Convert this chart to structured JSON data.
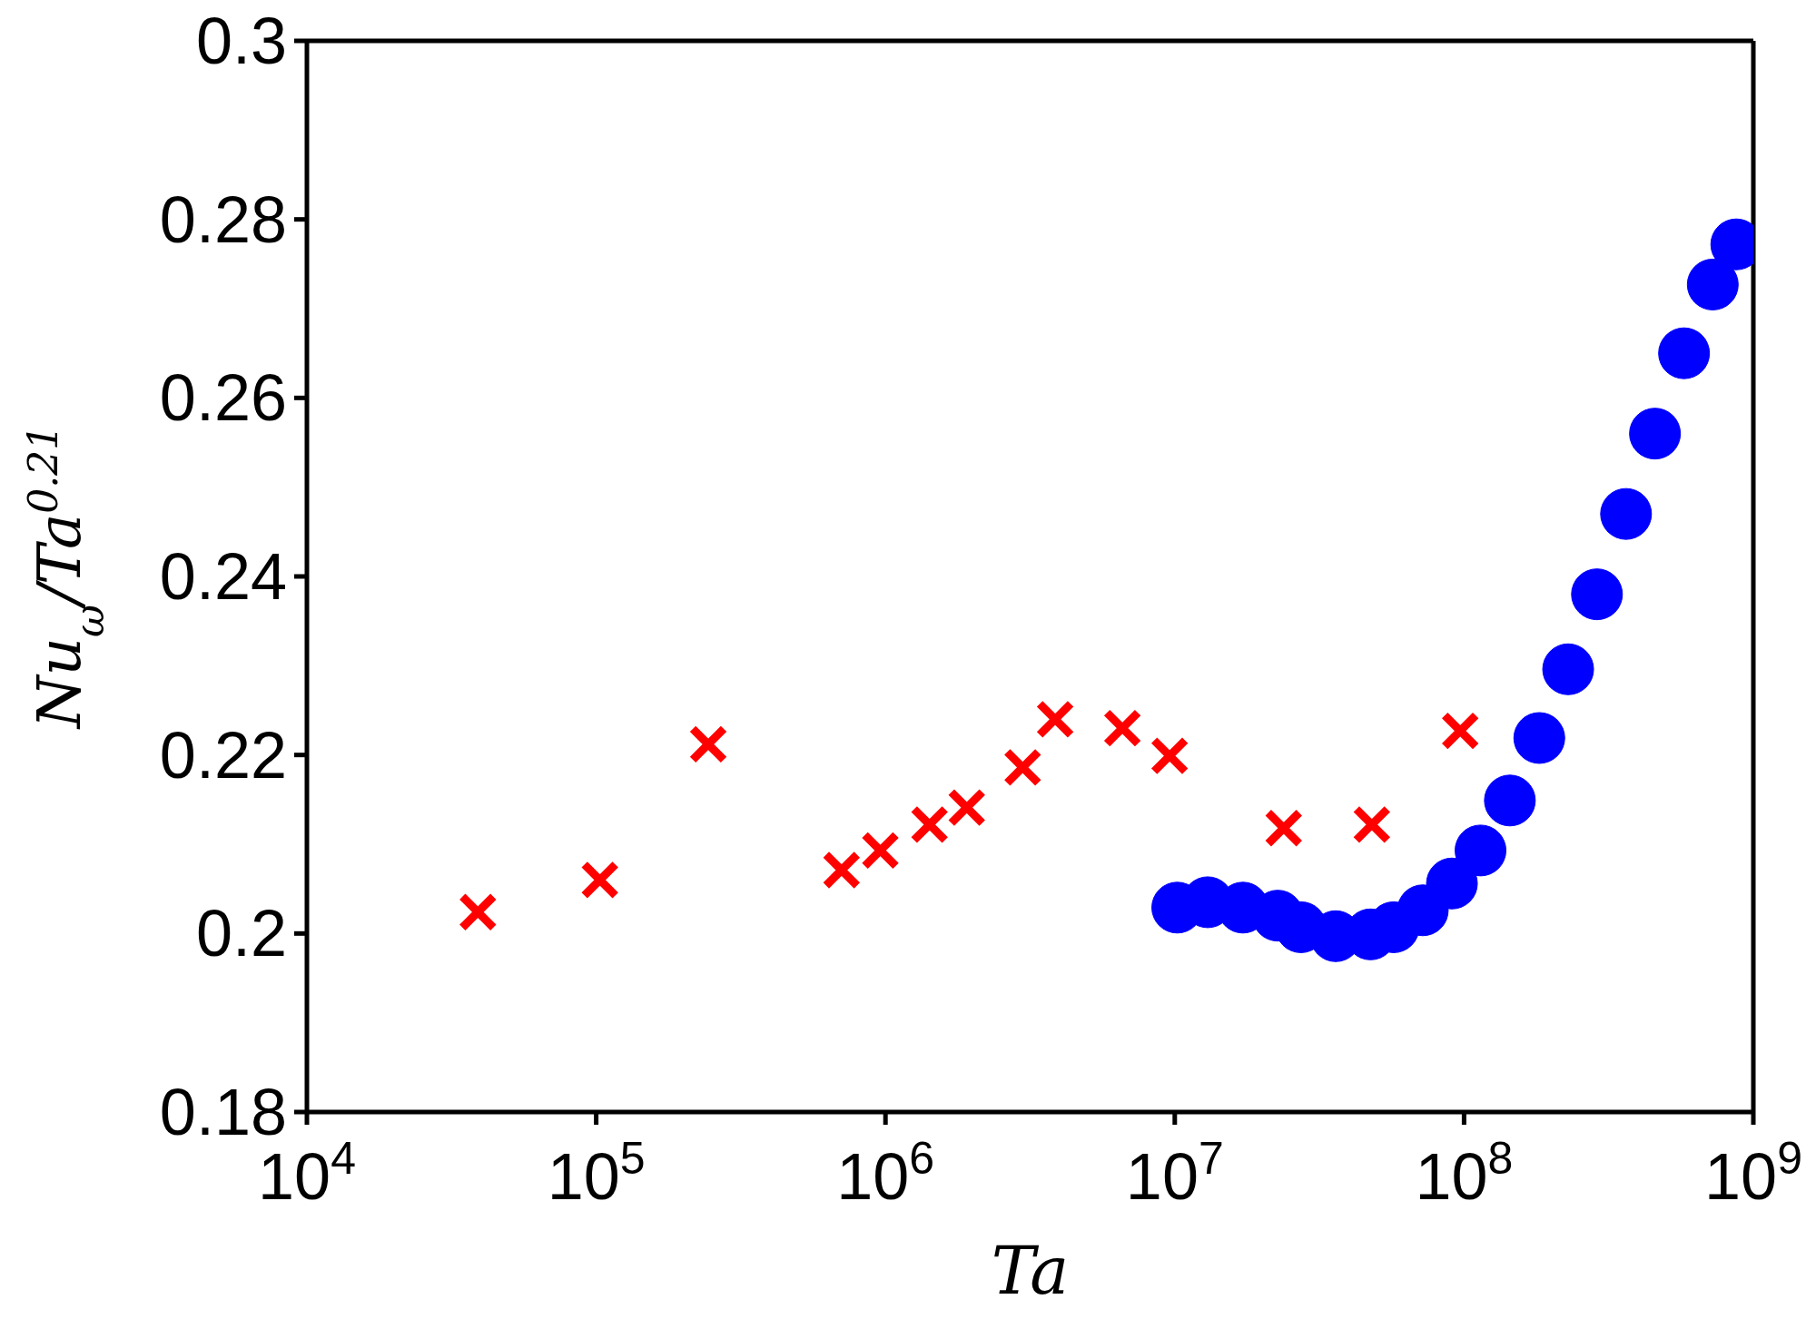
{
  "chart_data": {
    "type": "scatter",
    "xlabel": "Ta",
    "ylabel": "Nu$_{ω}$/Ta$^{0.21}$",
    "log": "x",
    "xlim": [
      10000,
      1000000000
    ],
    "xticks": [
      {
        "value": 10000,
        "label": "10$^{4}$"
      },
      {
        "value": 100000,
        "label": "10$^{5}$"
      },
      {
        "value": 1000000,
        "label": "10$^{6}$"
      },
      {
        "value": 10000000,
        "label": "10$^{7}$"
      },
      {
        "value": 100000000,
        "label": "10$^{8}$"
      },
      {
        "value": 1000000000,
        "label": "10$^{9}$"
      }
    ],
    "ylim": [
      0.18,
      0.3
    ],
    "yticks": [
      0.18,
      0.2,
      0.22,
      0.24,
      0.26,
      0.28,
      0.3
    ],
    "series": [
      {
        "color": "#ff0000",
        "marker": "cross",
        "x": [
          39000,
          103000,
          244000,
          705000,
          960000,
          1420000,
          1910000,
          2980000,
          3860000,
          6590000,
          9600000,
          23800000,
          48000000,
          97000000
        ],
        "values": [
          0.2024,
          0.206,
          0.2212,
          0.2071,
          0.2093,
          0.2122,
          0.2141,
          0.2186,
          0.224,
          0.223,
          0.2199,
          0.2118,
          0.2122,
          0.2227
        ]
      },
      {
        "color": "#0000ff",
        "marker": "circle",
        "x": [
          10200000,
          13000000,
          17200000,
          22700000,
          27300000,
          36000000,
          47500000,
          57100000,
          72000000,
          90800000,
          114000000,
          144000000,
          182000000,
          229000000,
          288000000,
          363000000,
          457000000,
          576000000,
          724000000,
          873000000
        ],
        "values": [
          0.2029,
          0.2035,
          0.2029,
          0.202,
          0.2007,
          0.1997,
          0.1999,
          0.2007,
          0.2026,
          0.2056,
          0.2093,
          0.2149,
          0.2219,
          0.2296,
          0.238,
          0.247,
          0.256,
          0.265,
          0.2727,
          0.2772
        ]
      }
    ]
  }
}
